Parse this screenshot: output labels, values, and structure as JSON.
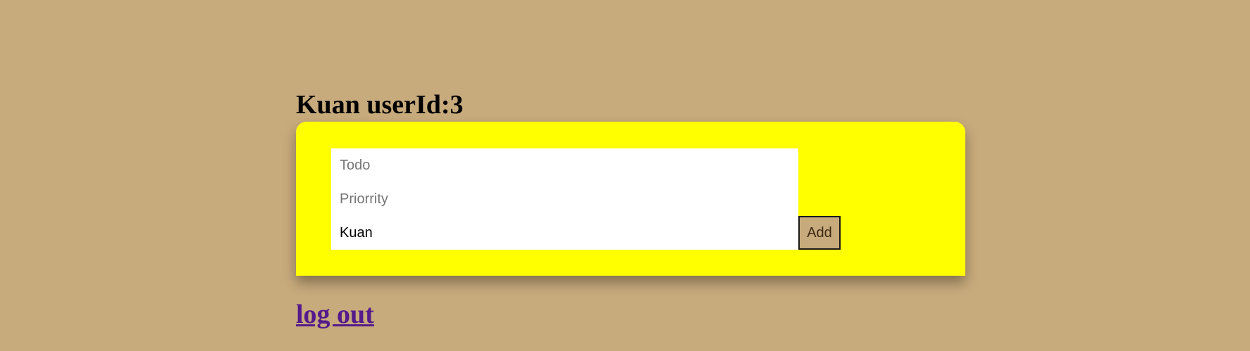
{
  "header": {
    "title": "Kuan userId:3"
  },
  "form": {
    "todo_placeholder": "Todo",
    "todo_value": "",
    "priority_placeholder": "Priorrity",
    "priority_value": "",
    "user_value": "Kuan",
    "add_label": "Add"
  },
  "footer": {
    "logout_label": "log out"
  },
  "colors": {
    "page_background": "#c8ab7c",
    "card_background": "#ffff00",
    "link": "#551a8b"
  }
}
